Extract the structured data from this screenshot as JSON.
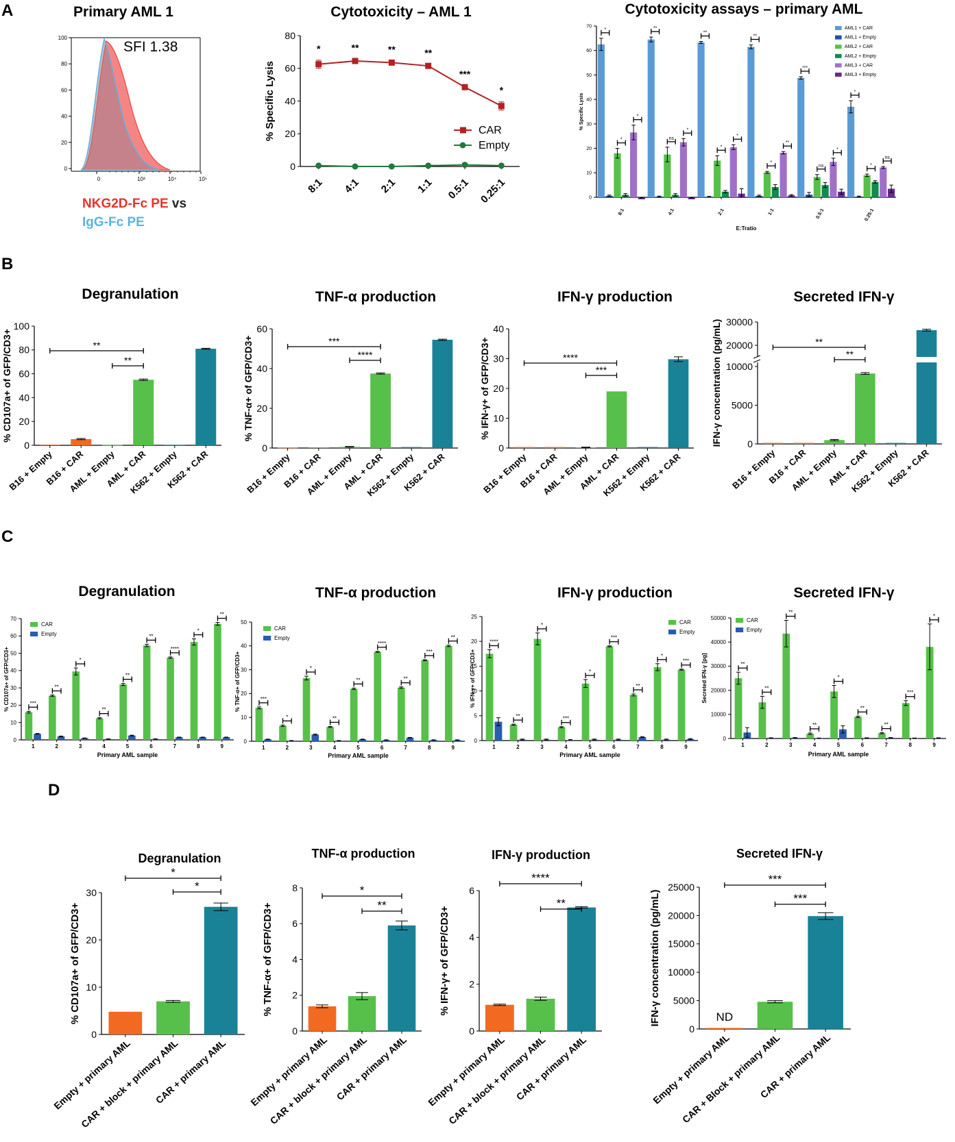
{
  "panel_letters": [
    "A",
    "B",
    "C",
    "D"
  ],
  "panel_a": {
    "hist": {
      "title": "Primary AML 1",
      "sfi": "SFI 1.38",
      "legend_nkg2d": "NKG2D-Fc PE",
      "legend_vs": " vs",
      "legend_igg": "IgG-Fc PE",
      "y_ticks": [
        "0",
        "20",
        "40",
        "60",
        "80",
        "100"
      ],
      "x_ticks": [
        "0",
        "10³",
        "10⁴",
        "10⁵"
      ],
      "nkg2d_color": "#f25c5c",
      "igg_color": "#5ab4e0"
    },
    "lysis_line_title": "Cytotoxicity – AML 1",
    "cytotox_title": "Cytotoxicity assays – primary AML"
  },
  "chart_data": [
    {
      "id": "a_line",
      "type": "line",
      "title": "Cytotoxicity – AML 1",
      "xlabel": "",
      "ylabel": "% Specific Lysis",
      "categories": [
        "8:1",
        "4:1",
        "2:1",
        "1:1",
        "0.5:1",
        "0.25:1"
      ],
      "ylim": [
        0,
        80
      ],
      "yticks": [
        0,
        20,
        40,
        60,
        80
      ],
      "series": [
        {
          "name": "CAR",
          "color": "#b22222",
          "values": [
            62.5,
            64.5,
            63.5,
            61.5,
            48.5,
            37
          ],
          "errors": [
            2.5,
            1,
            1,
            1,
            1,
            2.5
          ]
        },
        {
          "name": "Empty",
          "color": "#1f7a3e",
          "values": [
            0.5,
            0,
            0,
            0.5,
            1,
            0.5
          ],
          "errors": [
            0.5,
            0.3,
            0.3,
            0.3,
            1,
            0.3
          ]
        }
      ],
      "annotations": [
        "*",
        "**",
        "**",
        "**",
        "***",
        "*"
      ]
    },
    {
      "id": "a_cyto",
      "type": "bar",
      "title": "Cytotoxicity assays – primary AML",
      "xlabel": "E:Tratio",
      "ylabel": "% Specific Lysis",
      "categories": [
        "8:1",
        "4:1",
        "2:1",
        "1:1",
        "0.5:1",
        "0.25:1"
      ],
      "ylim": [
        0,
        70
      ],
      "yticks": [
        0,
        10,
        20,
        30,
        40,
        50,
        60,
        70
      ],
      "series": [
        {
          "name": "AML1 + CAR",
          "color": "#5b9bd5",
          "values": [
            62.5,
            64.5,
            63.3,
            61.5,
            48.8,
            37
          ],
          "errors": [
            2.5,
            1,
            0.4,
            0.8,
            0.5,
            2.5
          ]
        },
        {
          "name": "AML1 + Empty",
          "color": "#1f4fa8",
          "values": [
            0.6,
            0.3,
            0.2,
            0.6,
            1.1,
            0.3
          ],
          "errors": [
            0.3,
            0.2,
            0.2,
            0.3,
            0.9,
            0.2
          ]
        },
        {
          "name": "AML2 + CAR",
          "color": "#57c04a",
          "values": [
            18,
            17.5,
            15,
            10.2,
            8.3,
            9
          ],
          "errors": [
            2,
            3,
            2,
            0.4,
            1,
            0.5
          ]
        },
        {
          "name": "AML2 + Empty",
          "color": "#138a4e",
          "values": [
            1,
            1,
            2.3,
            4.2,
            5,
            6.3
          ],
          "errors": [
            0.5,
            0.5,
            0.5,
            1,
            1,
            0.5
          ]
        },
        {
          "name": "AML3 + CAR",
          "color": "#a070c8",
          "values": [
            26.5,
            22.5,
            20.5,
            18.2,
            14.5,
            12.2
          ],
          "errors": [
            3,
            1.5,
            1,
            0.5,
            1.5,
            0.4
          ]
        },
        {
          "name": "AML3 + Empty",
          "color": "#6a2a8c",
          "values": [
            -0.8,
            -0.8,
            1.5,
            0.8,
            2.3,
            3.5
          ],
          "errors": [
            0.5,
            0.5,
            2,
            0.3,
            1,
            1.5
          ]
        }
      ],
      "annotations": [
        [
          "*",
          "*",
          "*"
        ],
        [
          "**",
          "ns",
          "*"
        ],
        [
          "**",
          "*",
          "*"
        ],
        [
          "**",
          "*",
          "**"
        ],
        [
          "***",
          "ns",
          "*"
        ],
        [
          "*",
          "*",
          "ns"
        ]
      ]
    },
    {
      "id": "b_degran",
      "type": "bar",
      "title": "Degranulation",
      "ylabel": "% CD107a+ of GFP/CD3+",
      "categories": [
        "B16 + Empty",
        "B16 + CAR",
        "AML + Empty",
        "AML + CAR",
        "K562 + Empty",
        "K562 + CAR"
      ],
      "colors": [
        "#f26a21",
        "#f26a21",
        "#57c04a",
        "#57c04a",
        "#1a8296",
        "#1a8296"
      ],
      "values": [
        0.5,
        5.2,
        0.3,
        55,
        0.4,
        81
      ],
      "errors": [
        0,
        0.5,
        0,
        0.6,
        0,
        0.4
      ],
      "ylim": [
        0,
        100
      ],
      "yticks": [
        0,
        20,
        40,
        60,
        80,
        100
      ],
      "brackets": [
        [
          "AML + Empty",
          "AML + CAR",
          "**"
        ],
        [
          "B16 + Empty",
          "AML + CAR",
          "**"
        ]
      ]
    },
    {
      "id": "b_tnf",
      "type": "bar",
      "title": "TNF-α production",
      "ylabel": "% TNF-α+ of GFP/CD3+",
      "categories": [
        "B16 + Empty",
        "B16 + CAR",
        "AML + Empty",
        "AML + CAR",
        "K562 + Empty",
        "K562 + CAR"
      ],
      "colors": [
        "#f26a21",
        "#f26a21",
        "#57c04a",
        "#57c04a",
        "#1a8296",
        "#1a8296"
      ],
      "values": [
        0.2,
        0.3,
        0.6,
        37.5,
        0.5,
        54.5
      ],
      "errors": [
        0,
        0,
        0.2,
        0.3,
        0,
        0.3
      ],
      "ylim": [
        0,
        60
      ],
      "yticks": [
        0,
        20,
        40,
        60
      ],
      "brackets": [
        [
          "AML + Empty",
          "AML + CAR",
          "****"
        ],
        [
          "B16 + Empty",
          "AML + CAR",
          "***"
        ]
      ]
    },
    {
      "id": "b_ifn",
      "type": "bar",
      "title": "IFN-γ production",
      "ylabel": "% IFN-γ+ of GFP/CD3+",
      "categories": [
        "B16 + Empty",
        "B16 + CAR",
        "AML + Empty",
        "AML + CAR",
        "K562 + Empty",
        "K562 + CAR"
      ],
      "colors": [
        "#f26a21",
        "#f26a21",
        "#57c04a",
        "#57c04a",
        "#1a8296",
        "#1a8296"
      ],
      "values": [
        0,
        0,
        0.2,
        19,
        0,
        29.8
      ],
      "errors": [
        0,
        0,
        0.1,
        0,
        0,
        0.8
      ],
      "ylim": [
        0,
        40
      ],
      "yticks": [
        0,
        10,
        20,
        30,
        40
      ],
      "brackets": [
        [
          "AML + Empty",
          "AML + CAR",
          "***"
        ],
        [
          "B16 + Empty",
          "AML + CAR",
          "****"
        ]
      ]
    },
    {
      "id": "b_sec",
      "type": "bar",
      "title": "Secreted IFN-γ",
      "ylabel": "IFN-γ concentration (pg/mL)",
      "categories": [
        "B16 + Empty",
        "B16 + CAR",
        "AML + Empty",
        "AML + CAR",
        "K562 + Empty",
        "K562 + CAR"
      ],
      "colors": [
        "#f26a21",
        "#f26a21",
        "#57c04a",
        "#57c04a",
        "#1a8296",
        "#1a8296"
      ],
      "values": [
        0,
        0,
        500,
        9100,
        0,
        26500
      ],
      "errors": [
        0,
        0,
        80,
        120,
        0,
        400
      ],
      "ylim": [
        0,
        30000
      ],
      "yticks": [
        0,
        5000,
        10000,
        20000,
        30000
      ],
      "broken_axis": [
        10500,
        15000
      ],
      "brackets": [
        [
          "AML + Empty",
          "AML + CAR",
          "**"
        ],
        [
          "B16 + Empty",
          "AML + CAR",
          "**"
        ]
      ]
    },
    {
      "id": "c_degran",
      "type": "bar",
      "title": "Degranulation",
      "xlabel": "Primary AML sample",
      "ylabel": "% CD107a+ of GFP/CD3+",
      "categories": [
        "1",
        "2",
        "3",
        "4",
        "5",
        "6",
        "7",
        "8",
        "9"
      ],
      "ylim": [
        0,
        70
      ],
      "yticks": [
        0,
        10,
        20,
        30,
        40,
        50,
        60,
        70
      ],
      "series": [
        {
          "name": "CAR",
          "color": "#57c04a",
          "values": [
            16,
            25.5,
            39.5,
            12.5,
            32,
            54.5,
            47.5,
            56.5,
            67
          ],
          "errors": [
            0.5,
            0.4,
            2,
            0.3,
            0.6,
            0.7,
            0.4,
            1.8,
            0.8
          ]
        },
        {
          "name": "Empty",
          "color": "#2a5db0",
          "values": [
            3.5,
            2,
            1,
            0.5,
            2.5,
            0.5,
            1.5,
            1.5,
            1.5
          ],
          "errors": [
            0.2,
            0.2,
            0.1,
            0.1,
            0.2,
            0.1,
            0.1,
            0.1,
            0.1
          ]
        }
      ],
      "annotations": [
        "***",
        "**",
        "*",
        "**",
        "**",
        "**",
        "****",
        "*",
        "**"
      ]
    },
    {
      "id": "c_tnf",
      "type": "bar",
      "title": "TNF-α production",
      "xlabel": "Primary AML sample",
      "ylabel": "% TNF-α+ of GFP/CD3+",
      "categories": [
        "1",
        "2",
        "3",
        "4",
        "5",
        "6",
        "7",
        "8",
        "9"
      ],
      "ylim": [
        0,
        50
      ],
      "yticks": [
        0,
        10,
        20,
        30,
        40,
        50
      ],
      "series": [
        {
          "name": "CAR",
          "color": "#57c04a",
          "values": [
            14,
            6.5,
            26.5,
            6,
            22,
            37.5,
            22.5,
            34,
            40
          ],
          "errors": [
            0.4,
            0.3,
            0.8,
            0.2,
            0.3,
            0.2,
            0.3,
            0.2,
            0.3
          ]
        },
        {
          "name": "Empty",
          "color": "#2a5db0",
          "values": [
            0.8,
            0.2,
            2.8,
            0.2,
            0.8,
            0.5,
            1.5,
            0.5,
            0.5
          ],
          "errors": [
            0.1,
            0.1,
            0.2,
            0.1,
            0.1,
            0.1,
            0.1,
            0.1,
            0.1
          ]
        }
      ],
      "annotations": [
        "***",
        "*",
        "*",
        "**",
        "**",
        "****",
        "**",
        "***",
        "**"
      ]
    },
    {
      "id": "c_ifn",
      "type": "bar",
      "title": "IFN-γ production",
      "xlabel": "Primary AML sample",
      "ylabel": "% IFN-γ+ of GFP/CD3+",
      "categories": [
        "1",
        "2",
        "3",
        "4",
        "5",
        "6",
        "7",
        "8",
        "9"
      ],
      "ylim": [
        0,
        25
      ],
      "yticks": [
        0,
        5,
        10,
        15,
        20,
        25
      ],
      "series": [
        {
          "name": "CAR",
          "color": "#57c04a",
          "values": [
            17.5,
            3.2,
            20.5,
            2.7,
            11.5,
            19,
            9.2,
            14.8,
            14.3
          ],
          "errors": [
            0.8,
            0.1,
            1.2,
            0.1,
            0.8,
            0.1,
            0.2,
            0.7,
            0.1
          ]
        },
        {
          "name": "Empty",
          "color": "#2a5db0",
          "values": [
            3.8,
            0.2,
            0.2,
            0.1,
            0.2,
            0.2,
            0.7,
            0.2,
            0.3
          ],
          "errors": [
            0.8,
            0.1,
            0.1,
            0.1,
            0.1,
            0.1,
            0.1,
            0.1,
            0.1
          ]
        }
      ],
      "annotations": [
        "****",
        "**",
        "*",
        "***",
        "*",
        "***",
        "**",
        "*",
        "***"
      ]
    },
    {
      "id": "c_sec",
      "type": "bar",
      "title": "Secreted IFN-γ",
      "xlabel": "Primary AML sample",
      "ylabel": "Secreted IFN-γ [pg]",
      "categories": [
        "1",
        "2",
        "3",
        "4",
        "5",
        "6",
        "7",
        "8",
        "9"
      ],
      "ylim": [
        0,
        50000
      ],
      "yticks": [
        0,
        10000,
        20000,
        30000,
        40000,
        50000
      ],
      "series": [
        {
          "name": "CAR",
          "color": "#57c04a",
          "values": [
            25000,
            15000,
            43500,
            2000,
            19500,
            9000,
            2200,
            14700,
            38000
          ],
          "errors": [
            2500,
            2500,
            5500,
            300,
            2500,
            300,
            200,
            1000,
            9500
          ]
        },
        {
          "name": "Empty",
          "color": "#2a5db0",
          "values": [
            2500,
            200,
            300,
            100,
            3800,
            200,
            300,
            100,
            200
          ],
          "errors": [
            2000,
            100,
            100,
            100,
            1500,
            100,
            100,
            100,
            100
          ]
        }
      ],
      "annotations": [
        "**",
        "**",
        "**",
        "**",
        "*",
        "**",
        "**",
        "***",
        "*"
      ]
    },
    {
      "id": "d_degran",
      "type": "bar",
      "title": "Degranulation",
      "ylabel": "% CD107a+ of GFP/CD3+",
      "categories": [
        "Empty + primary AML",
        "CAR + block + primary AML",
        "CAR + primary AML"
      ],
      "colors": [
        "#f26a21",
        "#57c04a",
        "#1a8296"
      ],
      "values": [
        4.8,
        7,
        27
      ],
      "errors": [
        0,
        0.2,
        0.8
      ],
      "ylim": [
        0,
        30
      ],
      "yticks": [
        0,
        10,
        20,
        30
      ],
      "brackets": [
        [
          "CAR + block + primary AML",
          "CAR + primary AML",
          "*"
        ],
        [
          "Empty + primary AML",
          "CAR + primary AML",
          "*"
        ]
      ]
    },
    {
      "id": "d_tnf",
      "type": "bar",
      "title": "TNF-α production",
      "ylabel": "% TNF-α+ of GFP/CD3+",
      "categories": [
        "Empty + primary AML",
        "CAR + block + primary AML",
        "CAR + primary AML"
      ],
      "colors": [
        "#f26a21",
        "#57c04a",
        "#1a8296"
      ],
      "values": [
        1.38,
        1.95,
        5.9
      ],
      "errors": [
        0.08,
        0.2,
        0.25
      ],
      "ylim": [
        0,
        8
      ],
      "yticks": [
        0,
        2,
        4,
        6,
        8
      ],
      "brackets": [
        [
          "CAR + block + primary AML",
          "CAR + primary AML",
          "**"
        ],
        [
          "Empty + primary AML",
          "CAR + primary AML",
          "*"
        ]
      ]
    },
    {
      "id": "d_ifn",
      "type": "bar",
      "title": "IFN-γ production",
      "ylabel": "% IFN-γ+ of GFP/CD3+",
      "categories": [
        "Empty + primary AML",
        "CAR + block + primary AML",
        "CAR + primary AML"
      ],
      "colors": [
        "#f26a21",
        "#57c04a",
        "#1a8296"
      ],
      "values": [
        1.12,
        1.38,
        5.28
      ],
      "errors": [
        0.03,
        0.07,
        0.03
      ],
      "ylim": [
        0,
        6
      ],
      "yticks": [
        0,
        2,
        4,
        6
      ],
      "brackets": [
        [
          "CAR + block + primary AML",
          "CAR + primary AML",
          "**"
        ],
        [
          "Empty + primary AML",
          "CAR + primary AML",
          "****"
        ]
      ]
    },
    {
      "id": "d_sec",
      "type": "bar",
      "title": "Secreted IFN-γ",
      "ylabel": "IFN-γ concentration (pg/mL)",
      "categories": [
        "Empty + primary AML",
        "CAR + Block + primary AML",
        "CAR + primary AML"
      ],
      "colors": [
        "#f26a21",
        "#57c04a",
        "#1a8296"
      ],
      "values": [
        0,
        4800,
        19900
      ],
      "errors": [
        0,
        200,
        600
      ],
      "ylim": [
        0,
        25000
      ],
      "yticks": [
        0,
        5000,
        10000,
        15000,
        20000,
        25000
      ],
      "value_labels": [
        "ND",
        "",
        ""
      ],
      "brackets": [
        [
          "CAR + Block + primary AML",
          "CAR + primary AML",
          "***"
        ],
        [
          "Empty + primary AML",
          "CAR + primary AML",
          "***"
        ]
      ]
    }
  ]
}
